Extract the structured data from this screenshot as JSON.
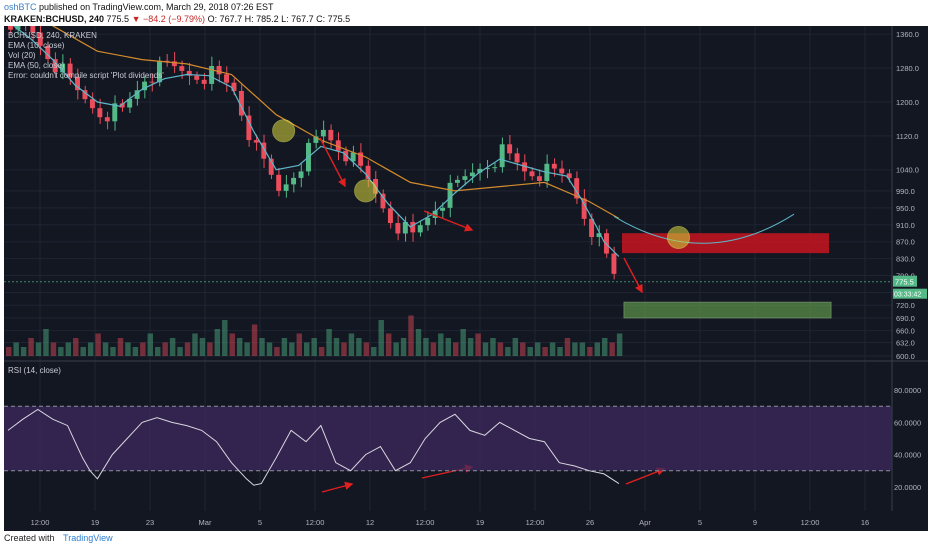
{
  "header": {
    "author": "oshBTC",
    "published": "published on TradingView.com, March 29, 2018 07:26 EST",
    "symbol_line": "KRAKEN:BCHUSD, 240",
    "last": "775.5",
    "change_arrow": "▼",
    "change": "−84.2 (−9.79%)",
    "ohlc": "O: 767.7  H: 785.2  L: 767.7  C: 775.5"
  },
  "legend": {
    "title": "BCHUSD, 240, KRAKEN",
    "ema10": "EMA (10, close)",
    "vol": "Vol (20)",
    "ema50": "EMA (50, close)",
    "error": "Error: couldn't compile script 'Plot dividends'",
    "rsi": "RSI (14, close)"
  },
  "price_badge": "775.5",
  "time_badge": "03:33:42",
  "footer": {
    "created": "Created with",
    "brand": "TradingView"
  },
  "colors": {
    "background": "#131722",
    "bull": "#53b987",
    "bear": "#eb4d5c",
    "ema10": "#5fb7c9",
    "ema50": "#d38b2c",
    "rsi": "#d7d7df",
    "rsi_band": "#3e2a5e",
    "arrow": "#e02020",
    "resistance_box": "#c8151f",
    "target_box": "#6aa84f",
    "circle": "#c8c83a"
  },
  "chart_data": {
    "type": "candlestick",
    "symbol": "KRAKEN:BCHUSD",
    "interval": "240",
    "x_ticks": [
      "12:00",
      "19",
      "23",
      "Mar",
      "5",
      "12:00",
      "12",
      "12:00",
      "19",
      "12:00",
      "26",
      "Apr",
      "5",
      "9",
      "12:00",
      "16"
    ],
    "price_ticks": [
      1360,
      1280,
      1200,
      1120,
      1040,
      990,
      950,
      910,
      870,
      830,
      790,
      750,
      720,
      690,
      660,
      632,
      600
    ],
    "rsi_ticks": [
      80,
      60,
      40,
      20
    ],
    "rsi_levels": [
      70,
      30
    ],
    "price_range": [
      600,
      1370
    ],
    "rsi_range": [
      5,
      95
    ],
    "close_path": [
      [
        0,
        1395
      ],
      [
        3,
        1360
      ],
      [
        6,
        1290
      ],
      [
        9,
        1220
      ],
      [
        12,
        1180
      ],
      [
        15,
        1175
      ],
      [
        18,
        1260
      ],
      [
        21,
        1280
      ],
      [
        24,
        1270
      ],
      [
        27,
        1265
      ],
      [
        30,
        1230
      ],
      [
        33,
        1080
      ],
      [
        36,
        990
      ],
      [
        39,
        1060
      ],
      [
        42,
        1130
      ],
      [
        45,
        1080
      ],
      [
        48,
        1010
      ],
      [
        51,
        930
      ],
      [
        54,
        880
      ],
      [
        57,
        955
      ],
      [
        60,
        1000
      ],
      [
        63,
        1050
      ],
      [
        66,
        1080
      ],
      [
        69,
        1040
      ],
      [
        72,
        1030
      ],
      [
        75,
        1020
      ],
      [
        77,
        940
      ],
      [
        79,
        870
      ],
      [
        80,
        830
      ],
      [
        81,
        790
      ],
      [
        82,
        775.5
      ]
    ],
    "ema10_path": [
      [
        0,
        1390
      ],
      [
        3,
        1350
      ],
      [
        6,
        1300
      ],
      [
        9,
        1240
      ],
      [
        12,
        1200
      ],
      [
        15,
        1190
      ],
      [
        18,
        1230
      ],
      [
        21,
        1255
      ],
      [
        24,
        1265
      ],
      [
        27,
        1262
      ],
      [
        30,
        1235
      ],
      [
        33,
        1130
      ],
      [
        36,
        1040
      ],
      [
        39,
        1050
      ],
      [
        42,
        1095
      ],
      [
        45,
        1080
      ],
      [
        48,
        1030
      ],
      [
        51,
        960
      ],
      [
        54,
        905
      ],
      [
        57,
        935
      ],
      [
        60,
        985
      ],
      [
        63,
        1030
      ],
      [
        66,
        1065
      ],
      [
        69,
        1050
      ],
      [
        72,
        1035
      ],
      [
        75,
        1025
      ],
      [
        77,
        970
      ],
      [
        79,
        905
      ],
      [
        80,
        870
      ],
      [
        82,
        835
      ]
    ],
    "ema50_path": [
      [
        0,
        1420
      ],
      [
        6,
        1380
      ],
      [
        12,
        1320
      ],
      [
        18,
        1300
      ],
      [
        24,
        1290
      ],
      [
        30,
        1265
      ],
      [
        36,
        1170
      ],
      [
        42,
        1110
      ],
      [
        48,
        1070
      ],
      [
        54,
        1010
      ],
      [
        60,
        990
      ],
      [
        66,
        1000
      ],
      [
        72,
        1010
      ],
      [
        78,
        965
      ],
      [
        82,
        925
      ]
    ],
    "volume": [
      2,
      3,
      2,
      4,
      3,
      6,
      3,
      2,
      3,
      4,
      2,
      3,
      5,
      3,
      2,
      4,
      3,
      2,
      3,
      5,
      2,
      3,
      4,
      2,
      3,
      5,
      4,
      3,
      6,
      8,
      5,
      4,
      3,
      7,
      4,
      3,
      2,
      4,
      3,
      5,
      3,
      4,
      2,
      6,
      4,
      3,
      5,
      4,
      3,
      2,
      8,
      5,
      3,
      4,
      9,
      6,
      4,
      3,
      5,
      4,
      3,
      6,
      4,
      5,
      3,
      4,
      3,
      2,
      4,
      3,
      2,
      3,
      2,
      3,
      2,
      4,
      3,
      3,
      2,
      3,
      4,
      3,
      5
    ],
    "rsi_path": [
      [
        0,
        55
      ],
      [
        2,
        62
      ],
      [
        4,
        68
      ],
      [
        6,
        62
      ],
      [
        8,
        58
      ],
      [
        9,
        48
      ],
      [
        10,
        38
      ],
      [
        11,
        30
      ],
      [
        12,
        25
      ],
      [
        14,
        40
      ],
      [
        16,
        50
      ],
      [
        18,
        60
      ],
      [
        20,
        63
      ],
      [
        22,
        60
      ],
      [
        24,
        58
      ],
      [
        26,
        55
      ],
      [
        28,
        48
      ],
      [
        30,
        35
      ],
      [
        32,
        25
      ],
      [
        33,
        21
      ],
      [
        34,
        22
      ],
      [
        36,
        38
      ],
      [
        38,
        55
      ],
      [
        40,
        48
      ],
      [
        42,
        58
      ],
      [
        44,
        35
      ],
      [
        46,
        30
      ],
      [
        48,
        40
      ],
      [
        50,
        45
      ],
      [
        52,
        30
      ],
      [
        54,
        35
      ],
      [
        56,
        50
      ],
      [
        58,
        60
      ],
      [
        60,
        65
      ],
      [
        62,
        55
      ],
      [
        64,
        52
      ],
      [
        66,
        60
      ],
      [
        68,
        55
      ],
      [
        70,
        50
      ],
      [
        72,
        48
      ],
      [
        74,
        35
      ],
      [
        76,
        33
      ],
      [
        78,
        30
      ],
      [
        80,
        28
      ],
      [
        82,
        22
      ]
    ],
    "annotations": {
      "resistance_zone": [
        843,
        890
      ],
      "target_zone": [
        690,
        727
      ],
      "circles": [
        [
          37,
          1132
        ],
        [
          48,
          990
        ],
        [
          90,
          880
        ]
      ]
    }
  }
}
